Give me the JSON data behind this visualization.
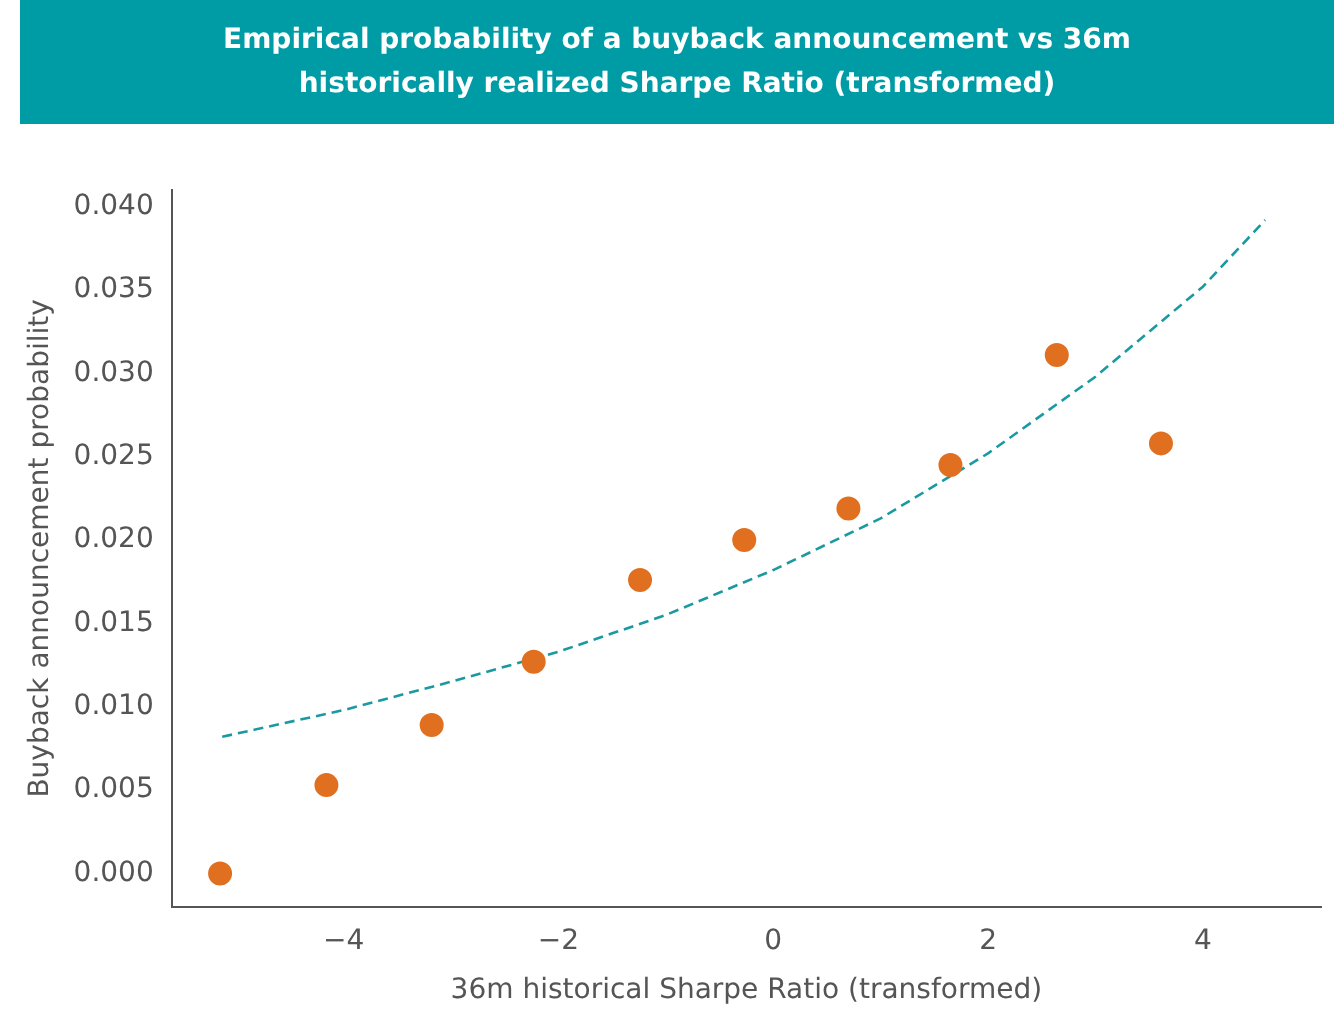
{
  "chart_data": {
    "type": "scatter",
    "title": "Empirical probability of a buyback announcement vs 36m historically realized Sharpe Ratio (transformed)",
    "xlabel": "36m historical Sharpe Ratio (transformed)",
    "ylabel": "Buyback announcement probability",
    "xlim": [
      -5.6,
      5.1
    ],
    "xticks": [
      -4,
      -2,
      0,
      2,
      4
    ],
    "ylim": [
      -0.002,
      0.041
    ],
    "yticks": [
      {
        "value": 0,
        "label": "0.000"
      },
      {
        "value": 0.005,
        "label": "0.005"
      },
      {
        "value": 0.01,
        "label": "0.010"
      },
      {
        "value": 0.015,
        "label": "0.015"
      },
      {
        "value": 0.02,
        "label": "0.020"
      },
      {
        "value": 0.025,
        "label": "0.025"
      },
      {
        "value": 0.03,
        "label": "0.030"
      },
      {
        "value": 0.035,
        "label": "0.035"
      },
      {
        "value": 0.04,
        "label": "0.040"
      }
    ],
    "grid": false,
    "legend": false,
    "marker": "circle",
    "series": [
      {
        "color": "#e07020",
        "x": [
          -5.15,
          -4.16,
          -3.18,
          -2.23,
          -1.24,
          -0.27,
          0.7,
          1.65,
          2.64,
          3.61
        ],
        "values": [
          0,
          0.0053,
          0.0089,
          0.0127,
          0.0176,
          0.02,
          0.0219,
          0.0245,
          0.0311,
          0.0258
        ]
      },
      {
        "type": "line",
        "color": "#1a9aa0",
        "marker": "none",
        "line_style": "dashed",
        "x": [
          -5.13,
          -4,
          -3,
          -2,
          -1,
          0,
          1,
          2,
          3,
          4,
          4.58
        ],
        "values": [
          0.0082,
          0.0098,
          0.0115,
          0.0133,
          0.0155,
          0.0182,
          0.0213,
          0.0252,
          0.0298,
          0.0352,
          0.0392
        ]
      }
    ]
  }
}
